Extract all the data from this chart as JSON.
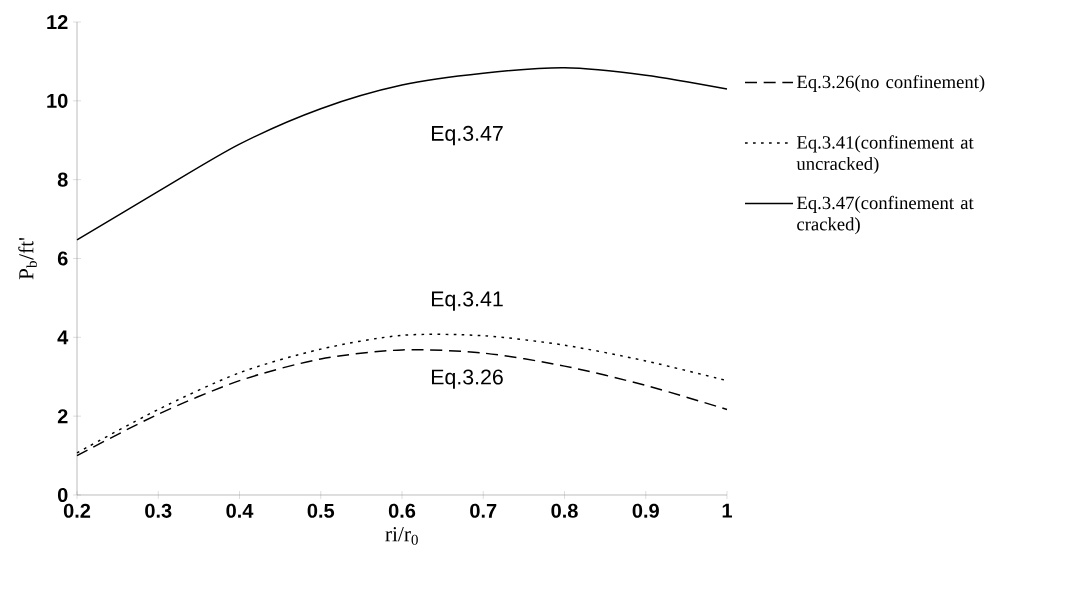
{
  "chart_data": {
    "type": "line",
    "xlabel": "ri/r$_{0}$",
    "ylabel": "P$_{b}$/ft'",
    "x": [
      0.2,
      0.3,
      0.4,
      0.5,
      0.6,
      0.7,
      0.8,
      0.9,
      1.0
    ],
    "series": [
      {
        "name": "Eq.3.26(no confinement)",
        "color": "#000000",
        "line_style": "dashed",
        "values": [
          1.0,
          2.05,
          2.9,
          3.45,
          3.68,
          3.6,
          3.27,
          2.78,
          2.17
        ]
      },
      {
        "name": "Eq.3.41(confinement at uncracked)",
        "color": "#000000",
        "line_style": "dotted",
        "values": [
          1.07,
          2.17,
          3.1,
          3.7,
          4.05,
          4.04,
          3.8,
          3.4,
          2.9
        ]
      },
      {
        "name": "Eq.3.47(confinement at cracked)",
        "color": "#000000",
        "line_style": "solid",
        "values": [
          6.47,
          7.7,
          8.9,
          9.8,
          10.4,
          10.7,
          10.84,
          10.65,
          10.3
        ]
      }
    ],
    "annotations": [
      "Eq.3.47",
      "Eq.3.41",
      "Eq.3.26"
    ],
    "xlim": [
      0.2,
      1
    ],
    "ylim": [
      0,
      12
    ],
    "xticks": [
      0.2,
      0.3,
      0.4,
      0.5,
      0.6,
      0.7,
      0.8,
      0.9,
      {
        "value": 1,
        "label": "1"
      }
    ],
    "yticks": [
      0,
      2,
      4,
      6,
      8,
      10,
      12
    ],
    "grid": false,
    "legend": "right",
    "marker": "none"
  }
}
